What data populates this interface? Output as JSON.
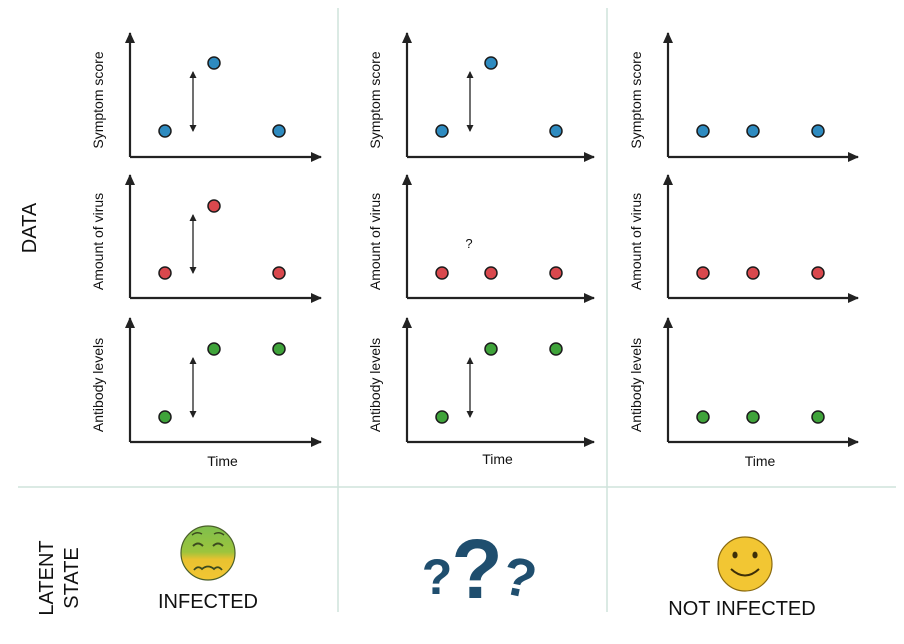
{
  "row_labels": {
    "data": "DATA",
    "latent_line1": "LATENT",
    "latent_line2": "STATE"
  },
  "panels": {
    "ylabels": [
      "Symptom score",
      "Amount of virus",
      "Antibody levels"
    ],
    "xlabel": "Time",
    "unknown_marker": "?"
  },
  "colors": {
    "symptom": "#2e8bc0",
    "virus": "#d9484d",
    "antibody": "#3fa33a",
    "axis": "#222222",
    "divider": "#cfe3dc",
    "question_marks": "#1f4e6e"
  },
  "chart_data": [
    {
      "type": "scatter",
      "column": 1,
      "ylabel": "Symptom score",
      "x": [
        1,
        2,
        3
      ],
      "y": [
        "low",
        "high",
        "low"
      ],
      "arrow": true
    },
    {
      "type": "scatter",
      "column": 1,
      "ylabel": "Amount of virus",
      "x": [
        1,
        2,
        3
      ],
      "y": [
        "low",
        "high",
        "low"
      ],
      "arrow": true
    },
    {
      "type": "scatter",
      "column": 1,
      "ylabel": "Antibody levels",
      "xlabel": "Time",
      "x": [
        1,
        2,
        3
      ],
      "y": [
        "low",
        "high",
        "high"
      ],
      "arrow": true
    },
    {
      "type": "scatter",
      "column": 2,
      "ylabel": "Symptom score",
      "x": [
        1,
        2,
        3
      ],
      "y": [
        "low",
        "high",
        "low"
      ],
      "arrow": true
    },
    {
      "type": "scatter",
      "column": 2,
      "ylabel": "Amount of virus",
      "x": [
        1,
        2,
        3
      ],
      "y": [
        "low",
        "low",
        "low"
      ],
      "annotation": "?"
    },
    {
      "type": "scatter",
      "column": 2,
      "ylabel": "Antibody levels",
      "xlabel": "Time",
      "x": [
        1,
        2,
        3
      ],
      "y": [
        "low",
        "high",
        "high"
      ],
      "arrow": true
    },
    {
      "type": "scatter",
      "column": 3,
      "ylabel": "Symptom score",
      "x": [
        1,
        2,
        3
      ],
      "y": [
        "low",
        "low",
        "low"
      ]
    },
    {
      "type": "scatter",
      "column": 3,
      "ylabel": "Amount of virus",
      "x": [
        1,
        2,
        3
      ],
      "y": [
        "low",
        "low",
        "low"
      ]
    },
    {
      "type": "scatter",
      "column": 3,
      "ylabel": "Antibody levels",
      "xlabel": "Time",
      "x": [
        1,
        2,
        3
      ],
      "y": [
        "low",
        "low",
        "low"
      ]
    }
  ],
  "latent_states": [
    {
      "label": "INFECTED",
      "icon": "sick-face-icon"
    },
    {
      "label": "",
      "icon": "question-marks-icon"
    },
    {
      "label": "NOT INFECTED",
      "icon": "smiley-face-icon"
    }
  ]
}
